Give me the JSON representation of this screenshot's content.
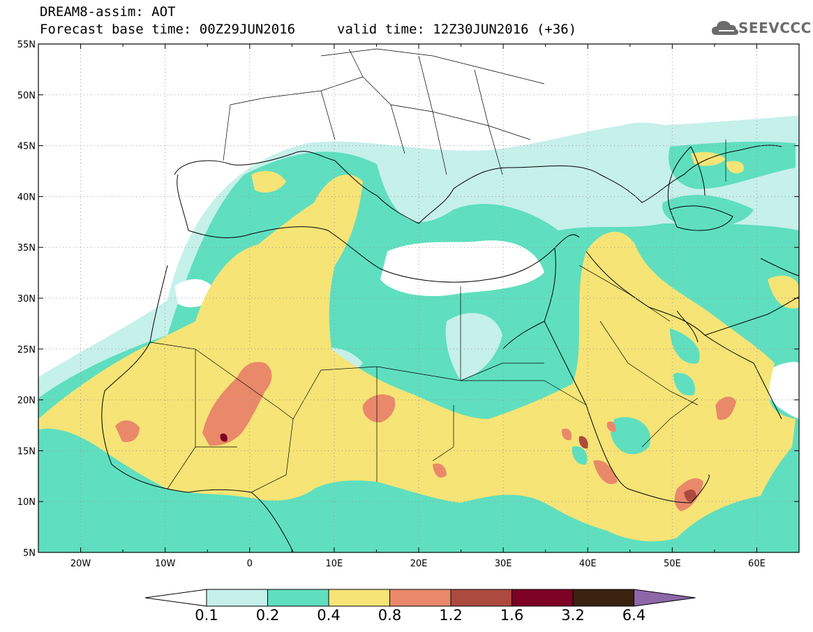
{
  "title": {
    "line1": "DREAM8-assim: AOT",
    "line2": "Forecast base time: 00Z29JUN2016",
    "line3": "valid time: 12Z30JUN2016 (+36)"
  },
  "logo": {
    "text": "SEEVCCC",
    "icon": "cloud-icon"
  },
  "map": {
    "lon_range": [
      -25,
      65
    ],
    "lat_range": [
      5,
      55
    ],
    "lon_ticks": [
      "20W",
      "10W",
      "0",
      "10E",
      "20E",
      "30E",
      "40E",
      "50E",
      "60E"
    ],
    "lat_ticks": [
      "5N",
      "10N",
      "15N",
      "20N",
      "25N",
      "30N",
      "35N",
      "40N",
      "45N",
      "50N",
      "55N"
    ],
    "grid": "dotted"
  },
  "colorbar": {
    "labels": [
      "0.1",
      "0.2",
      "0.4",
      "0.8",
      "1.2",
      "1.6",
      "3.2",
      "6.4"
    ],
    "colors": [
      "#c6f0ea",
      "#5fdfbf",
      "#f6e476",
      "#e9896a",
      "#ad4a3f",
      "#7d0025",
      "#3a220f",
      "#8d67a8"
    ]
  }
}
